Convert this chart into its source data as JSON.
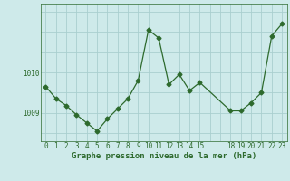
{
  "x": [
    0,
    1,
    2,
    3,
    4,
    5,
    6,
    7,
    8,
    9,
    10,
    11,
    12,
    13,
    14,
    15,
    18,
    19,
    20,
    21,
    22,
    23
  ],
  "y": [
    1009.65,
    1009.35,
    1009.18,
    1008.95,
    1008.75,
    1008.55,
    1008.85,
    1009.1,
    1009.35,
    1009.8,
    1011.05,
    1010.85,
    1009.7,
    1009.95,
    1009.55,
    1009.75,
    1009.05,
    1009.05,
    1009.25,
    1009.5,
    1010.9,
    1011.2
  ],
  "line_color": "#2d6a2d",
  "marker": "D",
  "marker_size": 2.5,
  "bg_color": "#ceeaea",
  "grid_color": "#aacfcf",
  "xlabel": "Graphe pression niveau de la mer (hPa)",
  "yticks": [
    1009,
    1010
  ],
  "ylim": [
    1008.3,
    1011.7
  ],
  "xlim": [
    -0.5,
    23.5
  ],
  "xtick_labels": [
    "0",
    "1",
    "2",
    "3",
    "4",
    "5",
    "6",
    "7",
    "8",
    "9",
    "10",
    "11",
    "12",
    "13",
    "14",
    "15",
    "",
    "",
    "18",
    "19",
    "20",
    "21",
    "22",
    "23"
  ],
  "xtick_positions": [
    0,
    1,
    2,
    3,
    4,
    5,
    6,
    7,
    8,
    9,
    10,
    11,
    12,
    13,
    14,
    15,
    16,
    17,
    18,
    19,
    20,
    21,
    22,
    23
  ],
  "label_fontsize": 6.5,
  "tick_fontsize": 5.5
}
